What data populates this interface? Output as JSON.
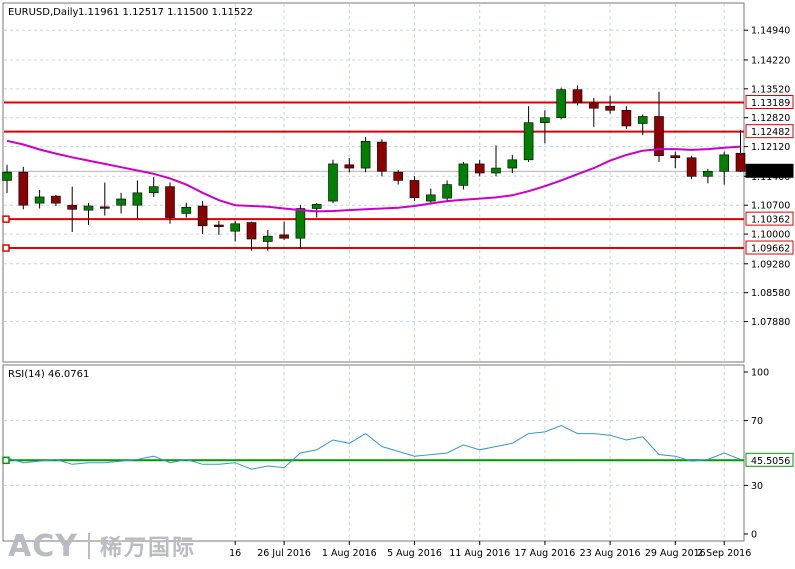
{
  "header": {
    "symbol": "EURUSD,Daily",
    "ohlc": "1.11961 1.12517 1.11500 1.11522"
  },
  "colors": {
    "bull": "#008000",
    "bear": "#8b0000",
    "ma": "#cc00cc",
    "level": "#e00000",
    "rsi": "#3399cc",
    "rsi_level": "#009900",
    "current_price_bg": "#000000",
    "grid": "#c9d6e3"
  },
  "chart_data": [
    {
      "type": "candlestick",
      "title": "EURUSD,Daily",
      "price_axis": {
        "ylim": [
          1.069,
          1.156
        ],
        "ticks": [
          "1.14940",
          "1.14220",
          "1.13520",
          "1.12820",
          "1.12120",
          "1.11400",
          "1.10700",
          "1.10000",
          "1.09280",
          "1.08580",
          "1.07880"
        ],
        "tick_values": [
          1.1494,
          1.1422,
          1.1352,
          1.1282,
          1.1212,
          1.114,
          1.107,
          1.1,
          1.0928,
          1.0858,
          1.0788
        ]
      },
      "x_labels": [
        "16",
        "26 Jul 2016",
        "1 Aug 2016",
        "5 Aug 2016",
        "11 Aug 2016",
        "17 Aug 2016",
        "23 Aug 2016",
        "29 Aug 2016",
        "2 Sep 2016"
      ],
      "x_label_index": [
        14,
        17,
        21,
        25,
        29,
        33,
        37,
        41,
        44
      ],
      "candles": [
        {
          "o": 1.113,
          "h": 1.1168,
          "l": 1.11,
          "c": 1.115
        },
        {
          "o": 1.115,
          "h": 1.1163,
          "l": 1.106,
          "c": 1.107
        },
        {
          "o": 1.1075,
          "h": 1.1107,
          "l": 1.1062,
          "c": 1.109
        },
        {
          "o": 1.1092,
          "h": 1.1095,
          "l": 1.1068,
          "c": 1.1075
        },
        {
          "o": 1.107,
          "h": 1.1115,
          "l": 1.1005,
          "c": 1.106
        },
        {
          "o": 1.1058,
          "h": 1.1075,
          "l": 1.1022,
          "c": 1.1068
        },
        {
          "o": 1.1066,
          "h": 1.1125,
          "l": 1.1045,
          "c": 1.1064
        },
        {
          "o": 1.107,
          "h": 1.11,
          "l": 1.105,
          "c": 1.1085
        },
        {
          "o": 1.107,
          "h": 1.113,
          "l": 1.1038,
          "c": 1.11
        },
        {
          "o": 1.11,
          "h": 1.1138,
          "l": 1.109,
          "c": 1.1115
        },
        {
          "o": 1.1115,
          "h": 1.1125,
          "l": 1.1025,
          "c": 1.104
        },
        {
          "o": 1.105,
          "h": 1.1076,
          "l": 1.104,
          "c": 1.1065
        },
        {
          "o": 1.1068,
          "h": 1.108,
          "l": 1.1,
          "c": 1.102
        },
        {
          "o": 1.1022,
          "h": 1.1032,
          "l": 1.0998,
          "c": 1.1018
        },
        {
          "o": 1.1007,
          "h": 1.1032,
          "l": 1.0982,
          "c": 1.1025
        },
        {
          "o": 1.1028,
          "h": 1.103,
          "l": 1.096,
          "c": 1.0988
        },
        {
          "o": 1.0982,
          "h": 1.101,
          "l": 1.096,
          "c": 1.0995
        },
        {
          "o": 1.0998,
          "h": 1.103,
          "l": 1.0986,
          "c": 1.099
        },
        {
          "o": 1.099,
          "h": 1.107,
          "l": 1.0965,
          "c": 1.1062
        },
        {
          "o": 1.1062,
          "h": 1.1075,
          "l": 1.104,
          "c": 1.1072
        },
        {
          "o": 1.108,
          "h": 1.118,
          "l": 1.1075,
          "c": 1.117
        },
        {
          "o": 1.1168,
          "h": 1.1184,
          "l": 1.115,
          "c": 1.116
        },
        {
          "o": 1.116,
          "h": 1.1235,
          "l": 1.115,
          "c": 1.1225
        },
        {
          "o": 1.1223,
          "h": 1.123,
          "l": 1.114,
          "c": 1.1152
        },
        {
          "o": 1.115,
          "h": 1.1155,
          "l": 1.112,
          "c": 1.113
        },
        {
          "o": 1.113,
          "h": 1.114,
          "l": 1.108,
          "c": 1.1088
        },
        {
          "o": 1.108,
          "h": 1.111,
          "l": 1.1073,
          "c": 1.1095
        },
        {
          "o": 1.1087,
          "h": 1.113,
          "l": 1.108,
          "c": 1.112
        },
        {
          "o": 1.1118,
          "h": 1.1175,
          "l": 1.1108,
          "c": 1.117
        },
        {
          "o": 1.117,
          "h": 1.118,
          "l": 1.114,
          "c": 1.1148
        },
        {
          "o": 1.1148,
          "h": 1.1215,
          "l": 1.114,
          "c": 1.116
        },
        {
          "o": 1.116,
          "h": 1.1192,
          "l": 1.1148,
          "c": 1.118
        },
        {
          "o": 1.118,
          "h": 1.131,
          "l": 1.1175,
          "c": 1.127
        },
        {
          "o": 1.127,
          "h": 1.13,
          "l": 1.122,
          "c": 1.1282
        },
        {
          "o": 1.1282,
          "h": 1.1355,
          "l": 1.1278,
          "c": 1.135
        },
        {
          "o": 1.135,
          "h": 1.136,
          "l": 1.1312,
          "c": 1.1318
        },
        {
          "o": 1.1318,
          "h": 1.133,
          "l": 1.126,
          "c": 1.1305
        },
        {
          "o": 1.131,
          "h": 1.1335,
          "l": 1.1292,
          "c": 1.13
        },
        {
          "o": 1.13,
          "h": 1.131,
          "l": 1.1255,
          "c": 1.1262
        },
        {
          "o": 1.1268,
          "h": 1.129,
          "l": 1.124,
          "c": 1.1285
        },
        {
          "o": 1.1285,
          "h": 1.1345,
          "l": 1.1175,
          "c": 1.119
        },
        {
          "o": 1.119,
          "h": 1.12,
          "l": 1.116,
          "c": 1.1185
        },
        {
          "o": 1.1185,
          "h": 1.119,
          "l": 1.1133,
          "c": 1.114
        },
        {
          "o": 1.114,
          "h": 1.1158,
          "l": 1.1123,
          "c": 1.1152
        },
        {
          "o": 1.1152,
          "h": 1.12,
          "l": 1.112,
          "c": 1.1192
        },
        {
          "o": 1.1196,
          "h": 1.1252,
          "l": 1.115,
          "c": 1.1152
        }
      ],
      "ma": [
        1.1226,
        1.1217,
        1.1205,
        1.1195,
        1.1186,
        1.1178,
        1.117,
        1.1162,
        1.1154,
        1.1146,
        1.1135,
        1.112,
        1.11,
        1.1082,
        1.107,
        1.1068,
        1.1066,
        1.1062,
        1.1058,
        1.1055,
        1.1056,
        1.1058,
        1.106,
        1.1062,
        1.1064,
        1.1068,
        1.1074,
        1.108,
        1.1083,
        1.1086,
        1.1089,
        1.1094,
        1.1104,
        1.1116,
        1.113,
        1.1145,
        1.116,
        1.1178,
        1.1192,
        1.1202,
        1.1206,
        1.1206,
        1.1204,
        1.1206,
        1.1209,
        1.1212
      ],
      "levels": [
        {
          "value": 1.13189,
          "label": "1.13189"
        },
        {
          "value": 1.12482,
          "label": "1.12482"
        },
        {
          "value": 1.10362,
          "label": "1.10362"
        },
        {
          "value": 1.09662,
          "label": "1.09662"
        }
      ],
      "current_price": "1.11522"
    },
    {
      "type": "line",
      "title": "RSI(14) 46.0761",
      "ylim": [
        0,
        100
      ],
      "ticks": [
        "100",
        "70",
        "30",
        "0"
      ],
      "tick_values": [
        100,
        70,
        30,
        0
      ],
      "series": [
        {
          "name": "RSI(14)",
          "values": [
            47,
            44,
            45,
            46,
            43,
            44,
            44,
            45,
            46,
            48,
            44,
            46,
            43,
            43,
            44,
            40,
            42,
            41,
            50,
            52,
            58,
            56,
            62,
            54,
            51,
            48,
            49,
            50,
            55,
            52,
            54,
            56,
            62,
            63,
            67,
            62,
            62,
            61,
            58,
            60,
            49,
            48,
            45,
            46,
            50,
            46
          ]
        }
      ],
      "level": {
        "value": 45.5056,
        "label": "45.5056"
      }
    }
  ]
}
